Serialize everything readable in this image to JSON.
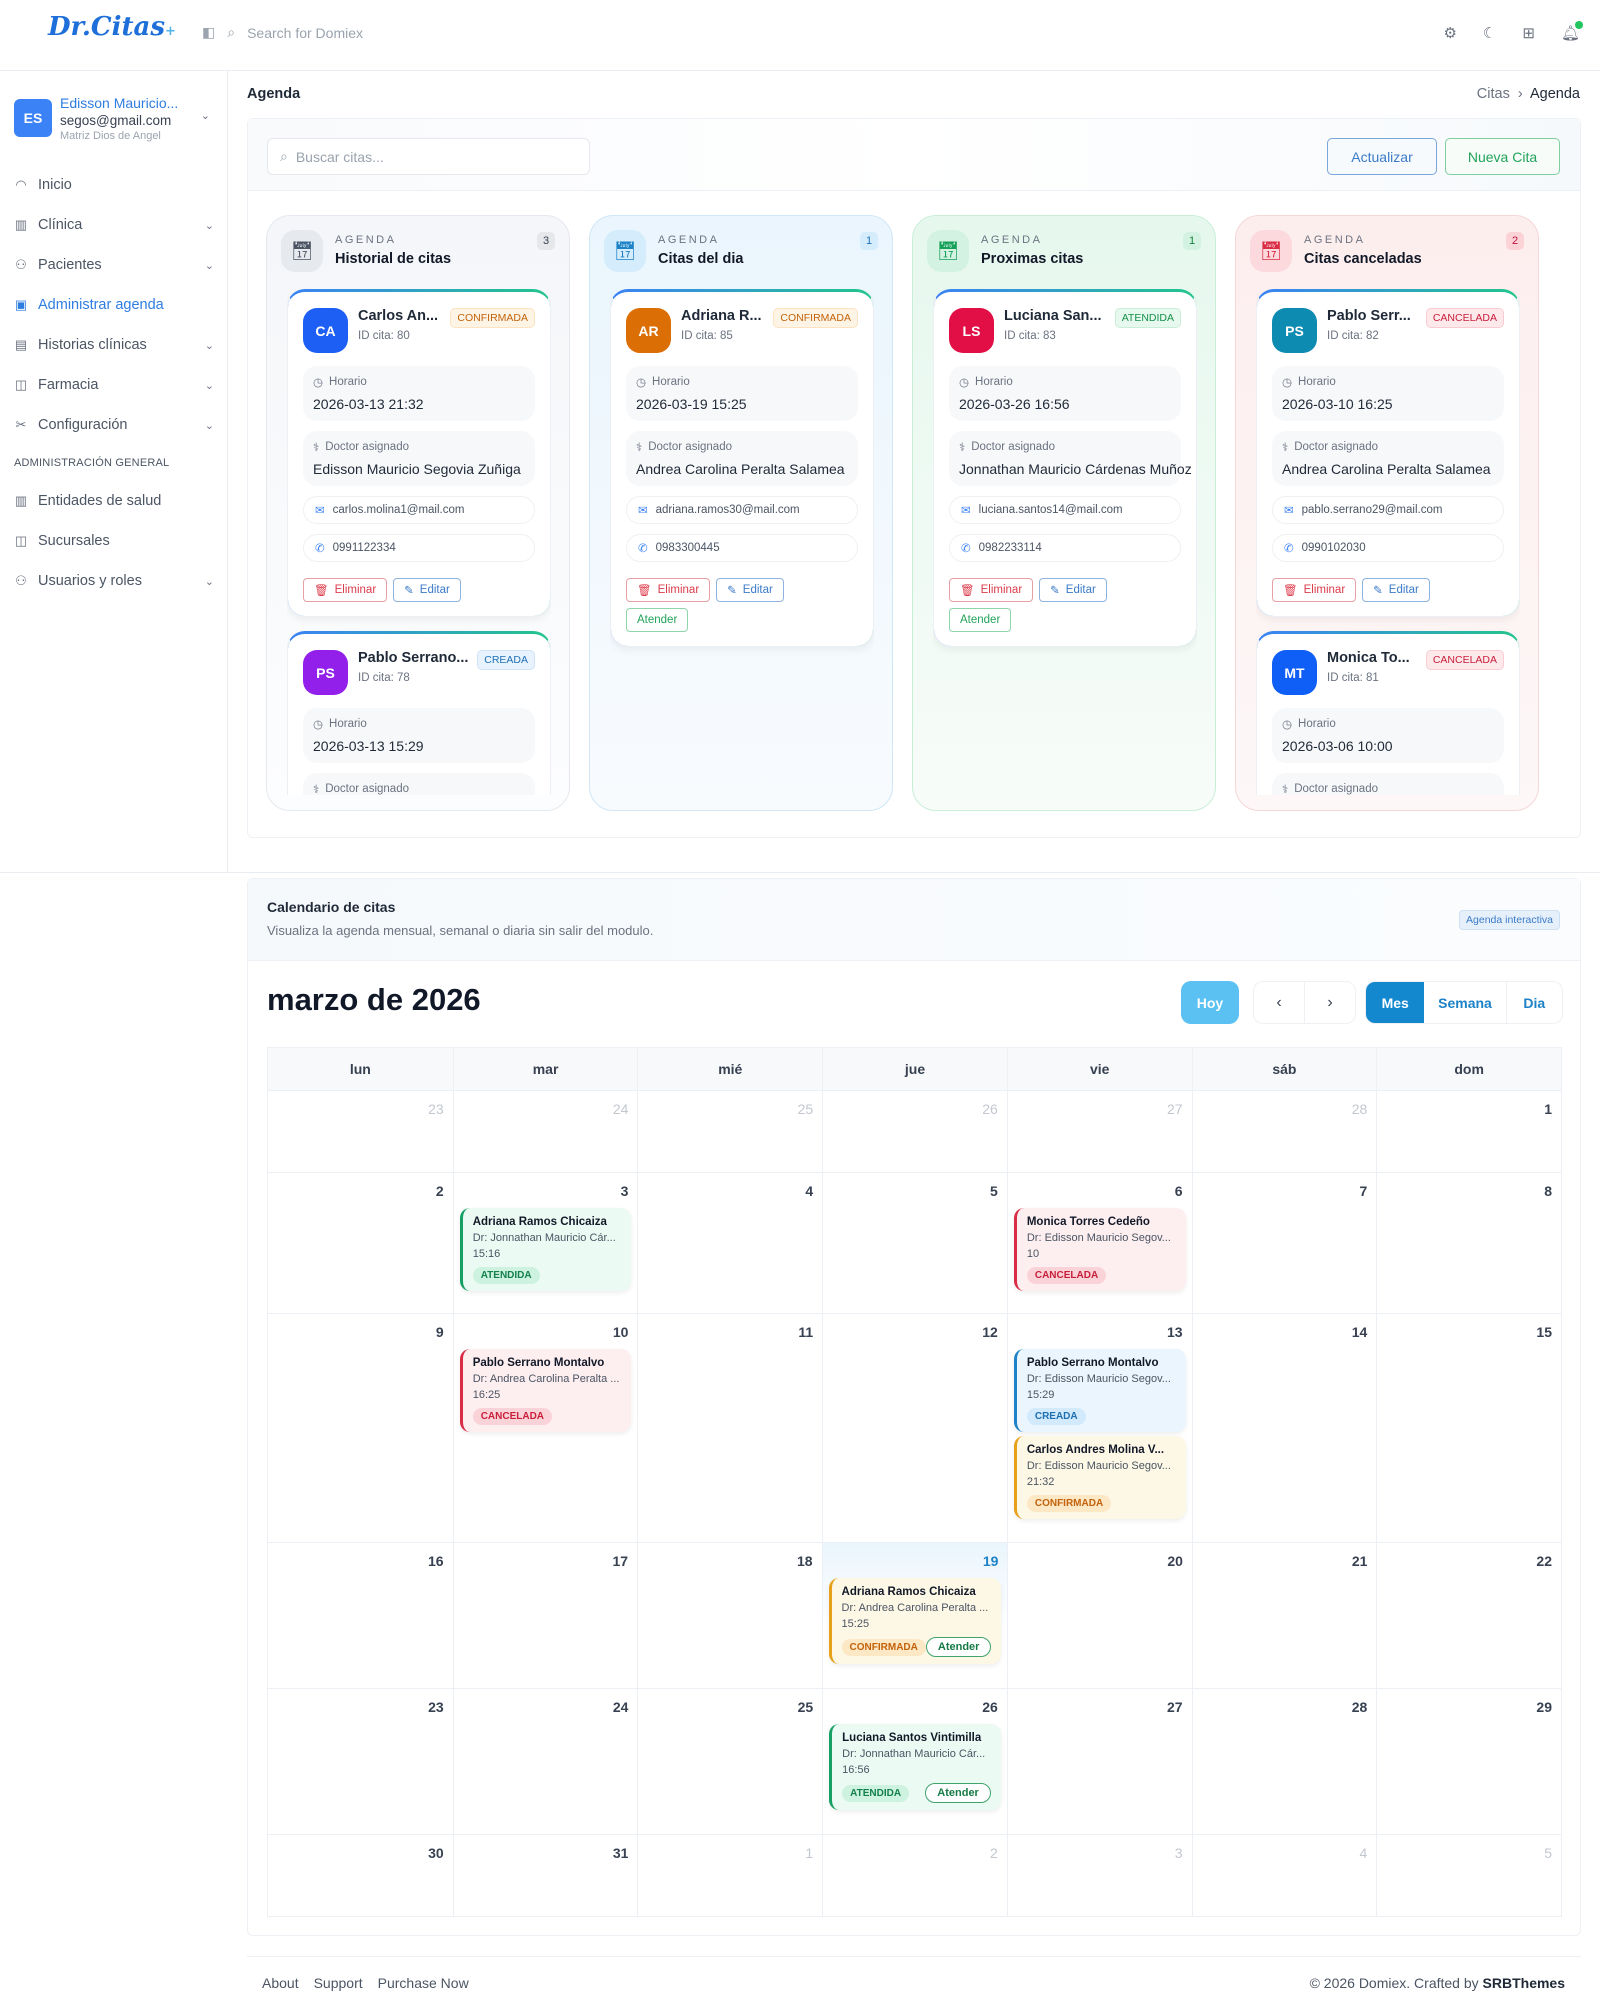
{
  "header": {
    "logo": "Dr.Citas",
    "logo_mark": "+",
    "search_placeholder": "Search for Domiex",
    "icons": [
      "sidebar-toggle-icon",
      "search-icon",
      "gear-icon",
      "moon-icon",
      "apps-grid-icon",
      "bell-icon"
    ]
  },
  "user": {
    "initials": "ES",
    "name": "Edisson Mauricio...",
    "email": "segos@gmail.com",
    "org": "Matriz Dios de Angel"
  },
  "sidebar": {
    "items": [
      {
        "label": "Inicio",
        "icon": "◠",
        "chev": false
      },
      {
        "label": "Clínica",
        "icon": "▥",
        "chev": true
      },
      {
        "label": "Pacientes",
        "icon": "⚇",
        "chev": true
      },
      {
        "label": "Administrar agenda",
        "icon": "▣",
        "chev": false,
        "active": true
      },
      {
        "label": "Historias clínicas",
        "icon": "▤",
        "chev": true
      },
      {
        "label": "Farmacia",
        "icon": "◫",
        "chev": true
      },
      {
        "label": "Configuración",
        "icon": "✂",
        "chev": true
      }
    ],
    "section": "ADMINISTRACIÓN GENERAL",
    "items2": [
      {
        "label": "Entidades de salud",
        "icon": "▥",
        "chev": false
      },
      {
        "label": "Sucursales",
        "icon": "◫",
        "chev": false
      },
      {
        "label": "Usuarios y roles",
        "icon": "⚇",
        "chev": true
      }
    ]
  },
  "page": {
    "title": "Agenda",
    "breadcrumb": [
      "Citas",
      "Agenda"
    ]
  },
  "toolbar": {
    "search_placeholder": "Buscar citas...",
    "refresh": "Actualizar",
    "new": "Nueva Cita"
  },
  "kanban": {
    "columns": [
      {
        "kicker": "AGENDA",
        "title": "Historial de citas",
        "count": "3",
        "theme": "gray",
        "cards": [
          {
            "initials": "CA",
            "color": "#1d5ef5",
            "name": "Carlos An...",
            "status": "CONFIRMADA",
            "id": "ID cita: 80",
            "horario_label": "Horario",
            "horario": "2026-03-13 21:32",
            "doctor_label": "Doctor asignado",
            "doctor": "Edisson Mauricio Segovia Zuñiga",
            "email": "carlos.molina1@mail.com",
            "phone": "0991122334",
            "buttons": [
              "Eliminar",
              "Editar"
            ]
          },
          {
            "initials": "PS",
            "color": "#9320ea",
            "name": "Pablo Serrano...",
            "status": "CREADA",
            "id": "ID cita: 78",
            "horario_label": "Horario",
            "horario": "2026-03-13 15:29",
            "doctor_label": "Doctor asignado"
          }
        ]
      },
      {
        "kicker": "AGENDA",
        "title": "Citas del dia",
        "count": "1",
        "theme": "blue",
        "cards": [
          {
            "initials": "AR",
            "color": "#db6f05",
            "name": "Adriana R...",
            "status": "CONFIRMADA",
            "id": "ID cita: 85",
            "horario_label": "Horario",
            "horario": "2026-03-19 15:25",
            "doctor_label": "Doctor asignado",
            "doctor": "Andrea Carolina Peralta Salamea",
            "email": "adriana.ramos30@mail.com",
            "phone": "0983300445",
            "buttons": [
              "Eliminar",
              "Editar",
              "Atender"
            ]
          }
        ]
      },
      {
        "kicker": "AGENDA",
        "title": "Proximas citas",
        "count": "1",
        "theme": "green",
        "cards": [
          {
            "initials": "LS",
            "color": "#e10f45",
            "name": "Luciana San...",
            "status": "ATENDIDA",
            "id": "ID cita: 83",
            "horario_label": "Horario",
            "horario": "2026-03-26 16:56",
            "doctor_label": "Doctor asignado",
            "doctor": "Jonnathan Mauricio Cárdenas Muñoz",
            "email": "luciana.santos14@mail.com",
            "phone": "0982233114",
            "buttons": [
              "Eliminar",
              "Editar",
              "Atender"
            ]
          }
        ]
      },
      {
        "kicker": "AGENDA",
        "title": "Citas canceladas",
        "count": "2",
        "theme": "red",
        "cards": [
          {
            "initials": "PS",
            "color": "#0e8bb0",
            "name": "Pablo Serr...",
            "status": "CANCELADA",
            "id": "ID cita: 82",
            "horario_label": "Horario",
            "horario": "2026-03-10 16:25",
            "doctor_label": "Doctor asignado",
            "doctor": "Andrea Carolina Peralta Salamea",
            "email": "pablo.serrano29@mail.com",
            "phone": "0990102030",
            "buttons": [
              "Eliminar",
              "Editar"
            ]
          },
          {
            "initials": "MT",
            "color": "#0f5ef5",
            "name": "Monica To...",
            "status": "CANCELADA",
            "id": "ID cita: 81",
            "horario_label": "Horario",
            "horario": "2026-03-06 10:00",
            "doctor_label": "Doctor asignado"
          }
        ]
      }
    ]
  },
  "calendar": {
    "title": "Calendario de citas",
    "subtitle": "Visualiza la agenda mensual, semanal o diaria sin salir del modulo.",
    "badge": "Agenda interactiva",
    "month": "marzo de 2026",
    "today_label": "Hoy",
    "prev": "‹",
    "next": "›",
    "views": [
      "Mes",
      "Semana",
      "Dia"
    ],
    "active_view": "Mes",
    "weekdays": [
      "lun",
      "mar",
      "mié",
      "jue",
      "vie",
      "sáb",
      "dom"
    ],
    "weeks": [
      [
        {
          "d": "23",
          "m": true
        },
        {
          "d": "24",
          "m": true
        },
        {
          "d": "25",
          "m": true
        },
        {
          "d": "26",
          "m": true
        },
        {
          "d": "27",
          "m": true
        },
        {
          "d": "28",
          "m": true
        },
        {
          "d": "1"
        }
      ],
      [
        {
          "d": "2"
        },
        {
          "d": "3",
          "events": [
            {
              "name": "Adriana Ramos Chicaiza",
              "doctor": "Dr: Jonnathan Mauricio Cár...",
              "time": "15:16",
              "status": "ATENDIDA"
            }
          ]
        },
        {
          "d": "4"
        },
        {
          "d": "5"
        },
        {
          "d": "6",
          "events": [
            {
              "name": "Monica Torres Cedeño",
              "doctor": "Dr: Edisson Mauricio Segov...",
              "time": "10",
              "status": "CANCELADA"
            }
          ]
        },
        {
          "d": "7"
        },
        {
          "d": "8"
        }
      ],
      [
        {
          "d": "9"
        },
        {
          "d": "10",
          "events": [
            {
              "name": "Pablo Serrano Montalvo",
              "doctor": "Dr: Andrea Carolina Peralta ...",
              "time": "16:25",
              "status": "CANCELADA"
            }
          ]
        },
        {
          "d": "11"
        },
        {
          "d": "12"
        },
        {
          "d": "13",
          "events": [
            {
              "name": "Pablo Serrano Montalvo",
              "doctor": "Dr: Edisson Mauricio Segov...",
              "time": "15:29",
              "status": "CREADA"
            },
            {
              "name": "Carlos Andres Molina V...",
              "doctor": "Dr: Edisson Mauricio Segov...",
              "time": "21:32",
              "status": "CONFIRMADA"
            }
          ]
        },
        {
          "d": "14"
        },
        {
          "d": "15"
        }
      ],
      [
        {
          "d": "16"
        },
        {
          "d": "17"
        },
        {
          "d": "18"
        },
        {
          "d": "19",
          "today": true,
          "events": [
            {
              "name": "Adriana Ramos Chicaiza",
              "doctor": "Dr: Andrea Carolina Peralta ...",
              "time": "15:25",
              "status": "CONFIRMADA",
              "action": "Atender"
            }
          ]
        },
        {
          "d": "20"
        },
        {
          "d": "21"
        },
        {
          "d": "22"
        }
      ],
      [
        {
          "d": "23"
        },
        {
          "d": "24"
        },
        {
          "d": "25"
        },
        {
          "d": "26",
          "events": [
            {
              "name": "Luciana Santos Vintimilla",
              "doctor": "Dr: Jonnathan Mauricio Cár...",
              "time": "16:56",
              "status": "ATENDIDA",
              "action": "Atender"
            }
          ]
        },
        {
          "d": "27"
        },
        {
          "d": "28"
        },
        {
          "d": "29"
        }
      ],
      [
        {
          "d": "30"
        },
        {
          "d": "31"
        },
        {
          "d": "1",
          "m": true
        },
        {
          "d": "2",
          "m": true
        },
        {
          "d": "3",
          "m": true
        },
        {
          "d": "4",
          "m": true
        },
        {
          "d": "5",
          "m": true
        }
      ]
    ]
  },
  "footer": {
    "links": [
      "About",
      "Support",
      "Purchase Now"
    ],
    "copyright": "© 2026 Domiex. Crafted by ",
    "brand": "SRBThemes"
  }
}
